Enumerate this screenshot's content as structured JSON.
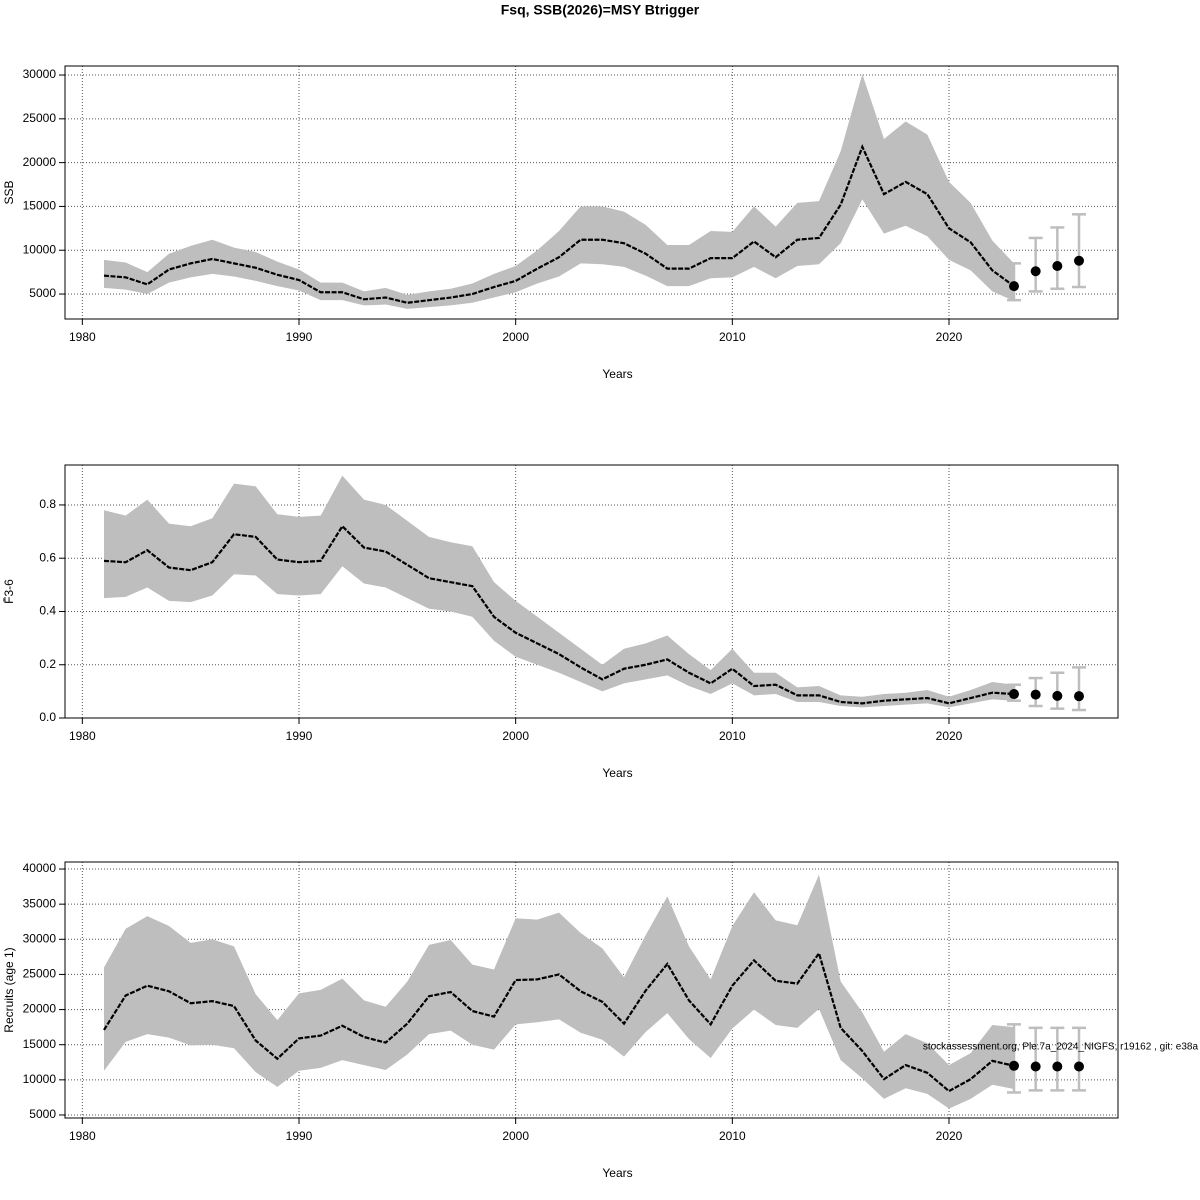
{
  "title": "Fsq, SSB(2026)=MSY Btrigger",
  "annotation": "stockassessment.org, Ple.7a_2024_NIGFS, r19162 , git: e38a",
  "chart_data": [
    {
      "type": "line",
      "xlabel": "Years",
      "ylabel": "SSB",
      "grid": true,
      "band_color": "#bebebe",
      "line_color": "#000000",
      "forecast_color": "#bebebe",
      "xlim": [
        1979.2,
        2027.8
      ],
      "xticks": [
        1980,
        1990,
        2000,
        2010,
        2020
      ],
      "ylim": [
        2150,
        31030
      ],
      "yticks": [
        5000,
        10000,
        15000,
        20000,
        25000,
        30000
      ],
      "x": [
        1981,
        1982,
        1983,
        1984,
        1985,
        1986,
        1987,
        1988,
        1989,
        1990,
        1991,
        1992,
        1993,
        1994,
        1995,
        1996,
        1997,
        1998,
        1999,
        2000,
        2001,
        2002,
        2003,
        2004,
        2005,
        2006,
        2007,
        2008,
        2009,
        2010,
        2011,
        2012,
        2013,
        2014,
        2015,
        2016,
        2017,
        2018,
        2019,
        2020,
        2021,
        2022,
        2023
      ],
      "values": [
        7100,
        6900,
        6100,
        7800,
        8500,
        9000,
        8500,
        8000,
        7200,
        6600,
        5200,
        5200,
        4400,
        4600,
        4000,
        4300,
        4600,
        5000,
        5800,
        6500,
        7900,
        9200,
        11200,
        11200,
        10800,
        9600,
        7900,
        7900,
        9100,
        9100,
        11000,
        9200,
        11200,
        11400,
        15200,
        21800,
        16400,
        17800,
        16400,
        12500,
        10900,
        7700,
        5900
      ],
      "upper": [
        8900,
        8600,
        7500,
        9600,
        10500,
        11200,
        10300,
        9800,
        8700,
        7800,
        6300,
        6300,
        5300,
        5700,
        4900,
        5300,
        5600,
        6200,
        7300,
        8200,
        10000,
        12200,
        15000,
        15000,
        14400,
        12900,
        10600,
        10600,
        12200,
        12100,
        15000,
        12700,
        15400,
        15600,
        21300,
        30100,
        22700,
        24700,
        23200,
        17800,
        15400,
        11100,
        8500
      ],
      "lower": [
        5700,
        5500,
        5000,
        6300,
        6900,
        7300,
        7000,
        6500,
        5900,
        5400,
        4300,
        4300,
        3700,
        3800,
        3300,
        3500,
        3700,
        4000,
        4600,
        5200,
        6200,
        7000,
        8500,
        8400,
        8100,
        7100,
        5900,
        5900,
        6800,
        6900,
        8100,
        6800,
        8200,
        8400,
        10800,
        15800,
        11900,
        12800,
        11600,
        8900,
        7700,
        5300,
        4200
      ],
      "forecast": {
        "x": [
          2023,
          2024,
          2025,
          2026
        ],
        "values": [
          5900,
          7600,
          8200,
          8800
        ],
        "lower": [
          4300,
          5300,
          5600,
          5800
        ],
        "upper": [
          8500,
          11400,
          12600,
          14100
        ]
      }
    },
    {
      "type": "line",
      "xlabel": "Years",
      "ylabel": "F̄3-6",
      "grid": true,
      "band_color": "#bebebe",
      "line_color": "#000000",
      "forecast_color": "#bebebe",
      "xlim": [
        1979.2,
        2027.8
      ],
      "xticks": [
        1980,
        1990,
        2000,
        2010,
        2020
      ],
      "ylim": [
        0,
        0.95
      ],
      "yticks": [
        {
          "value": 0,
          "label": "0.0"
        },
        0.2,
        0.4,
        0.6,
        0.8
      ],
      "x": [
        1981,
        1982,
        1983,
        1984,
        1985,
        1986,
        1987,
        1988,
        1989,
        1990,
        1991,
        1992,
        1993,
        1994,
        1995,
        1996,
        1997,
        1998,
        1999,
        2000,
        2001,
        2002,
        2003,
        2004,
        2005,
        2006,
        2007,
        2008,
        2009,
        2010,
        2011,
        2012,
        2013,
        2014,
        2015,
        2016,
        2017,
        2018,
        2019,
        2020,
        2021,
        2022,
        2023
      ],
      "values": [
        0.59,
        0.585,
        0.63,
        0.565,
        0.555,
        0.585,
        0.69,
        0.68,
        0.595,
        0.585,
        0.59,
        0.72,
        0.64,
        0.625,
        0.575,
        0.525,
        0.51,
        0.495,
        0.38,
        0.32,
        0.28,
        0.24,
        0.19,
        0.145,
        0.185,
        0.2,
        0.22,
        0.17,
        0.13,
        0.185,
        0.12,
        0.125,
        0.085,
        0.085,
        0.06,
        0.055,
        0.065,
        0.07,
        0.075,
        0.055,
        0.075,
        0.095,
        0.09
      ],
      "upper": [
        0.78,
        0.76,
        0.82,
        0.73,
        0.72,
        0.75,
        0.88,
        0.87,
        0.765,
        0.755,
        0.76,
        0.91,
        0.82,
        0.8,
        0.74,
        0.68,
        0.66,
        0.645,
        0.51,
        0.44,
        0.38,
        0.32,
        0.26,
        0.2,
        0.26,
        0.28,
        0.31,
        0.24,
        0.18,
        0.26,
        0.17,
        0.17,
        0.115,
        0.12,
        0.085,
        0.08,
        0.09,
        0.095,
        0.105,
        0.08,
        0.105,
        0.135,
        0.125
      ],
      "lower": [
        0.45,
        0.455,
        0.49,
        0.44,
        0.435,
        0.46,
        0.54,
        0.535,
        0.465,
        0.46,
        0.465,
        0.57,
        0.505,
        0.49,
        0.45,
        0.41,
        0.4,
        0.38,
        0.29,
        0.23,
        0.2,
        0.17,
        0.135,
        0.1,
        0.13,
        0.145,
        0.16,
        0.12,
        0.09,
        0.13,
        0.085,
        0.09,
        0.06,
        0.06,
        0.045,
        0.04,
        0.045,
        0.05,
        0.055,
        0.04,
        0.055,
        0.07,
        0.065
      ],
      "forecast": {
        "x": [
          2023,
          2024,
          2025,
          2026
        ],
        "values": [
          0.09,
          0.088,
          0.083,
          0.082
        ],
        "lower": [
          0.065,
          0.045,
          0.035,
          0.03
        ],
        "upper": [
          0.125,
          0.15,
          0.17,
          0.19
        ]
      }
    },
    {
      "type": "line",
      "xlabel": "Years",
      "ylabel": "Recruits (age 1)",
      "grid": true,
      "band_color": "#bebebe",
      "line_color": "#000000",
      "forecast_color": "#bebebe",
      "xlim": [
        1979.2,
        2027.8
      ],
      "xticks": [
        1980,
        1990,
        2000,
        2010,
        2020
      ],
      "ylim": [
        4570,
        41000
      ],
      "yticks": [
        5000,
        10000,
        15000,
        20000,
        25000,
        30000,
        35000,
        40000
      ],
      "x": [
        1981,
        1982,
        1983,
        1984,
        1985,
        1986,
        1987,
        1988,
        1989,
        1990,
        1991,
        1992,
        1993,
        1994,
        1995,
        1996,
        1997,
        1998,
        1999,
        2000,
        2001,
        2002,
        2003,
        2004,
        2005,
        2006,
        2007,
        2008,
        2009,
        2010,
        2011,
        2012,
        2013,
        2014,
        2015,
        2016,
        2017,
        2018,
        2019,
        2020,
        2021,
        2022,
        2023
      ],
      "values": [
        17100,
        22000,
        23400,
        22600,
        20900,
        21200,
        20500,
        15600,
        13000,
        15900,
        16300,
        17700,
        16100,
        15300,
        18000,
        21900,
        22500,
        19800,
        19000,
        24200,
        24300,
        25000,
        22600,
        21100,
        18000,
        22700,
        26500,
        21300,
        17900,
        23400,
        27000,
        24100,
        23700,
        28000,
        17400,
        14100,
        10100,
        12100,
        11000,
        8400,
        10100,
        12700,
        12000
      ],
      "upper": [
        26000,
        31500,
        33300,
        31900,
        29500,
        30000,
        29000,
        22200,
        18500,
        22300,
        22800,
        24400,
        21300,
        20400,
        24000,
        29200,
        29900,
        26400,
        25700,
        33000,
        32800,
        33800,
        30900,
        28700,
        24600,
        30600,
        36100,
        29000,
        24300,
        31900,
        36700,
        32700,
        32000,
        39200,
        24000,
        19600,
        14000,
        16500,
        15200,
        12100,
        13800,
        17800,
        17500
      ],
      "lower": [
        11300,
        15400,
        16500,
        16000,
        14900,
        15000,
        14500,
        11100,
        9000,
        11300,
        11700,
        12800,
        12100,
        11400,
        13600,
        16500,
        17000,
        15000,
        14300,
        17900,
        18200,
        18600,
        16700,
        15700,
        13300,
        16800,
        19500,
        15800,
        13100,
        17300,
        20000,
        17800,
        17400,
        20100,
        12800,
        10200,
        7300,
        8800,
        8000,
        5900,
        7300,
        9300,
        8700
      ],
      "forecast": {
        "x": [
          2023,
          2024,
          2025,
          2026
        ],
        "values": [
          12000,
          11900,
          11900,
          11900
        ],
        "lower": [
          8200,
          8500,
          8500,
          8500
        ],
        "upper": [
          17900,
          17400,
          17400,
          17400
        ]
      }
    }
  ]
}
